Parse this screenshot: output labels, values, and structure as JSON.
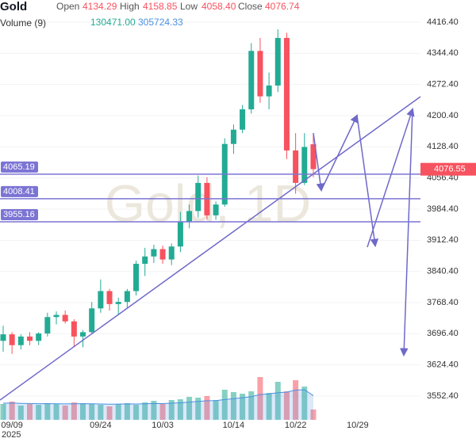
{
  "chart_data": {
    "type": "candlestick",
    "symbol": "Gold",
    "watermark": "Gold, 1D",
    "ohlc_labels": {
      "open": "Open",
      "high": "High",
      "low": "Low",
      "close": "Close"
    },
    "ohlc_text": {
      "open": "4134.29",
      "high": "4158.85",
      "low": "4058.40",
      "close": "4076.74"
    },
    "volume_label": "Volume (9)",
    "volume_text": "130471.00",
    "volume_ma_text": "305724.33",
    "year_label": "2025",
    "categories": [
      null,
      "09/09",
      null,
      null,
      null,
      null,
      null,
      null,
      null,
      null,
      null,
      "09/24",
      null,
      null,
      null,
      null,
      null,
      null,
      "10/03",
      null,
      null,
      null,
      null,
      null,
      null,
      null,
      "10/14",
      null,
      null,
      null,
      null,
      null,
      null,
      "10/22",
      null,
      null,
      null,
      null,
      null,
      null,
      "10/29"
    ],
    "open": [
      3680,
      3695,
      3670,
      3690,
      3680,
      3697,
      3735,
      3740,
      3725,
      3690,
      3700,
      3755,
      3795,
      3765,
      3770,
      3795,
      3858,
      3875,
      3892,
      3868,
      3898,
      3955,
      3980,
      4045,
      3970,
      3995,
      4135,
      4168,
      4215,
      4350,
      4245,
      4270,
      4380,
      4120,
      4045,
      4134.29,
      null,
      null,
      null,
      null,
      null
    ],
    "high": [
      3715,
      3700,
      3695,
      3700,
      3700,
      3745,
      3748,
      3750,
      3730,
      3705,
      3770,
      3822,
      3800,
      3780,
      3800,
      3865,
      3895,
      3902,
      3900,
      3905,
      3978,
      3995,
      4062,
      4058,
      4002,
      4148,
      4180,
      4225,
      4368,
      4380,
      4300,
      4400,
      4392,
      4160,
      4160,
      4158.85,
      null,
      null,
      null,
      null,
      null
    ],
    "low": [
      3655,
      3650,
      3660,
      3670,
      3670,
      3690,
      3718,
      3720,
      3665,
      3665,
      3695,
      3745,
      3750,
      3740,
      3755,
      3785,
      3830,
      3860,
      3858,
      3855,
      3885,
      3940,
      3965,
      3960,
      3960,
      3990,
      4112,
      4160,
      4205,
      4230,
      4215,
      4255,
      4100,
      4020,
      4040,
      4058.4,
      null,
      null,
      null,
      null,
      null
    ],
    "close": [
      3695,
      3670,
      3690,
      3680,
      3697,
      3735,
      3740,
      3725,
      3690,
      3700,
      3755,
      3795,
      3765,
      3770,
      3795,
      3858,
      3875,
      3892,
      3868,
      3898,
      3955,
      3980,
      4045,
      3970,
      3995,
      4135,
      4168,
      4215,
      4350,
      4245,
      4270,
      4380,
      4120,
      4045,
      4128,
      4076.74,
      null,
      null,
      null,
      null,
      null
    ],
    "volume": [
      200000,
      230000,
      180000,
      200000,
      190000,
      210000,
      200000,
      180000,
      220000,
      210000,
      200000,
      190000,
      170000,
      200000,
      210000,
      190000,
      220000,
      240000,
      200000,
      250000,
      260000,
      290000,
      280000,
      300000,
      250000,
      380000,
      350000,
      330000,
      360000,
      540000,
      340000,
      480000,
      360000,
      500000,
      420000,
      130471,
      null,
      null,
      null,
      null,
      null
    ],
    "volume_ma": [
      210000,
      212000,
      208000,
      206000,
      204000,
      205000,
      203000,
      201000,
      202000,
      204000,
      203000,
      200000,
      198000,
      199000,
      201000,
      200000,
      202000,
      206000,
      205000,
      210000,
      215000,
      224000,
      232000,
      241000,
      243000,
      256000,
      268000,
      279000,
      292000,
      320000,
      327000,
      343000,
      350000,
      375000,
      380000,
      305724.33,
      null,
      null,
      null,
      null,
      null
    ],
    "up_color": "#22ab94",
    "down_color": "#f7525f",
    "ma_color": "#4a90e2",
    "ylim": [
      3497.5,
      4467.65
    ],
    "yticks": [
      {
        "value": 3552.4,
        "label": "3552.40"
      },
      {
        "value": 3624.4,
        "label": "3624.40"
      },
      {
        "value": 3696.4,
        "label": "3696.40"
      },
      {
        "value": 3768.4,
        "label": "3768.40"
      },
      {
        "value": 3840.4,
        "label": "3840.40"
      },
      {
        "value": 3912.4,
        "label": "3912.40"
      },
      {
        "value": 3984.4,
        "label": "3984.40"
      },
      {
        "value": 4056.4,
        "label": "4056.40"
      },
      {
        "value": 4128.4,
        "label": "4128.40"
      },
      {
        "value": 4200.4,
        "label": "4200.40"
      },
      {
        "value": 4272.4,
        "label": "4272.40"
      },
      {
        "value": 4344.4,
        "label": "4344.40"
      },
      {
        "value": 4416.4,
        "label": "4416.40"
      }
    ],
    "price_lines": [
      {
        "value": 4065.19,
        "label": "4065.19"
      },
      {
        "value": 4008.41,
        "label": "4008.41"
      },
      {
        "value": 3955.16,
        "label": "3955.16"
      }
    ],
    "price_line_color": "#7b74d4",
    "current_price": {
      "value": 4076.55,
      "label": "4076.55"
    }
  }
}
